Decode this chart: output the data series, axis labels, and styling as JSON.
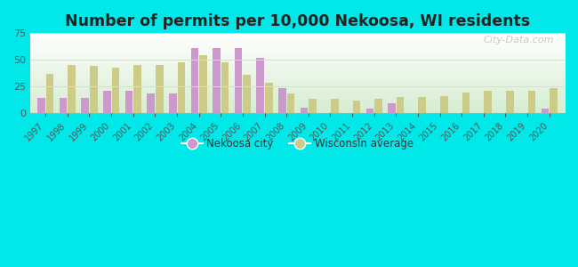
{
  "years": [
    1997,
    1998,
    1999,
    2000,
    2001,
    2002,
    2003,
    2004,
    2005,
    2006,
    2007,
    2008,
    2009,
    2010,
    2011,
    2012,
    2013,
    2014,
    2015,
    2016,
    2017,
    2018,
    2019,
    2020
  ],
  "nekoosa": [
    14,
    14,
    14,
    21,
    21,
    18,
    18,
    61,
    61,
    61,
    52,
    23,
    5,
    0,
    0,
    4,
    9,
    0,
    0,
    0,
    0,
    0,
    0,
    4
  ],
  "wisconsin": [
    37,
    45,
    44,
    43,
    45,
    45,
    48,
    54,
    48,
    36,
    28,
    18,
    13,
    13,
    12,
    13,
    15,
    15,
    16,
    19,
    21,
    21,
    21,
    23
  ],
  "nekoosa_color": "#cc99cc",
  "wisconsin_color": "#cccc88",
  "background_fig": "#00e8e8",
  "title": "Number of permits per 10,000 Nekoosa, WI residents",
  "title_fontsize": 12.5,
  "ylim": [
    0,
    75
  ],
  "yticks": [
    0,
    25,
    50,
    75
  ],
  "legend_nekoosa": "Nekoosa city",
  "legend_wisconsin": "Wisconsin average",
  "watermark": "City-Data.com",
  "grid_color": "#ddddcc",
  "spine_color": "#aaaaaa",
  "tick_color": "#555555"
}
